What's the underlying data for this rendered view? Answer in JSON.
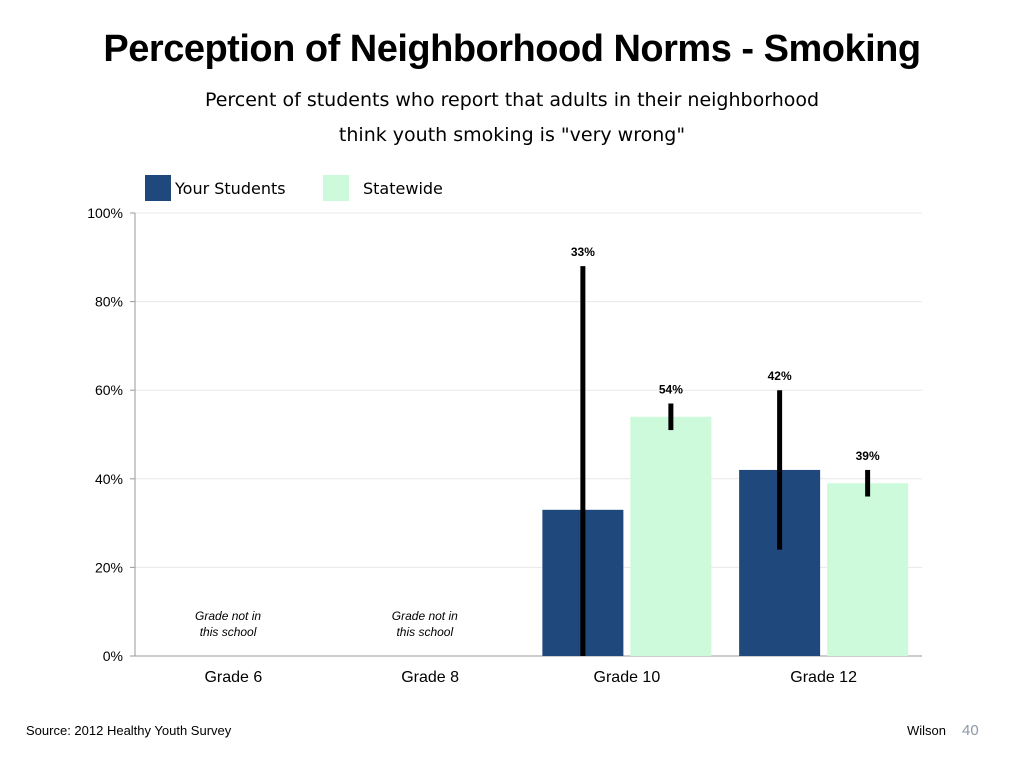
{
  "slide": {
    "title": "Perception of Neighborhood Norms - Smoking",
    "subtitle_line1": "Percent of students who report that adults in their neighborhood",
    "subtitle_line2": "think youth smoking is \"very wrong\"",
    "source": "Source: 2012 Healthy Youth Survey",
    "author": "Wilson",
    "page_number": "40"
  },
  "colors": {
    "your_students": "#1f497d",
    "statewide": "#ccfadb",
    "error_bar": "#000000",
    "gridline": "#e8e8e8",
    "axis": "#999999",
    "page_number": "#8c9aa8"
  },
  "chart_data": {
    "type": "bar",
    "categories": [
      "Grade 6",
      "Grade 8",
      "Grade 10",
      "Grade 12"
    ],
    "series": [
      {
        "name": "Your Students",
        "values": [
          null,
          null,
          33,
          42
        ],
        "labels": [
          "",
          "",
          "33%",
          "42%"
        ],
        "error_low": [
          null,
          null,
          0,
          24
        ],
        "error_high": [
          null,
          null,
          88,
          60
        ]
      },
      {
        "name": "Statewide",
        "values": [
          null,
          null,
          54,
          39
        ],
        "labels": [
          "",
          "",
          "54%",
          "39%"
        ],
        "error_low": [
          null,
          null,
          51,
          36
        ],
        "error_high": [
          null,
          null,
          57,
          42
        ]
      }
    ],
    "annotations": [
      {
        "category": "Grade 6",
        "lines": [
          "Grade not in",
          "this school"
        ]
      },
      {
        "category": "Grade 8",
        "lines": [
          "Grade not in",
          "this school"
        ]
      }
    ],
    "yticks": [
      "0%",
      "20%",
      "40%",
      "60%",
      "80%",
      "100%"
    ],
    "ylim": [
      0,
      100
    ],
    "grid": true,
    "legend": "top-left"
  }
}
